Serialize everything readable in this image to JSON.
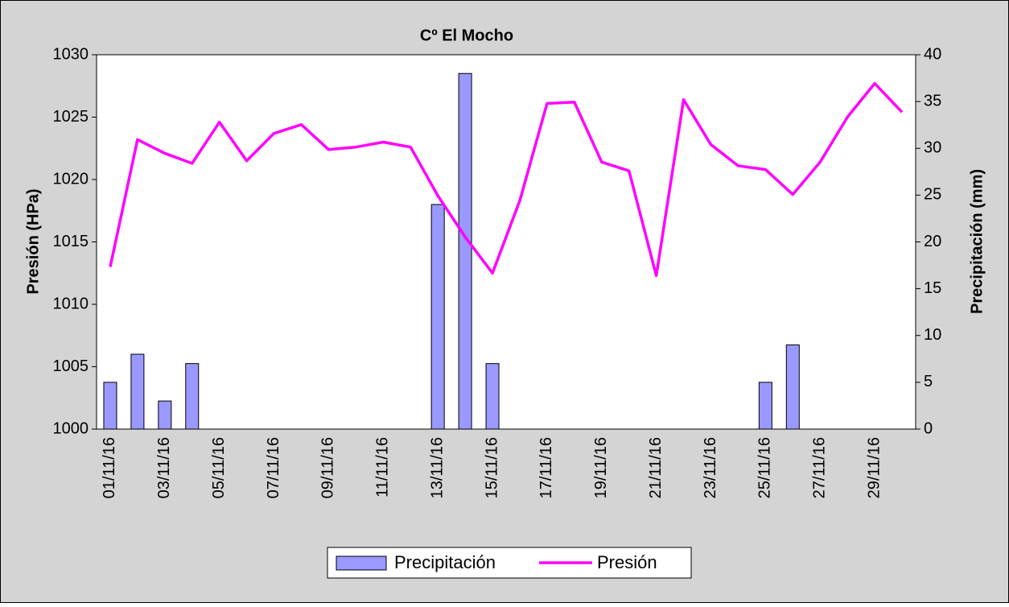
{
  "chart_data": {
    "type": "bar_line",
    "title": "Cº El Mocho",
    "y_label": "Presión (HPa)",
    "y2_label": "Precipitación (mm)",
    "categories": [
      "01/11/16",
      null,
      "03/11/16",
      null,
      "05/11/16",
      null,
      "07/11/16",
      null,
      "09/11/16",
      null,
      "11/11/16",
      null,
      "13/11/16",
      null,
      "15/11/16",
      null,
      "17/11/16",
      null,
      "19/11/16",
      null,
      "21/11/16",
      null,
      "23/11/16",
      null,
      "25/11/16",
      null,
      "27/11/16",
      null,
      "29/11/16",
      null
    ],
    "series": [
      {
        "name": "Precipitación",
        "type": "bar",
        "axis": "y2",
        "color": "#9999ff",
        "values": [
          5,
          8,
          3,
          7,
          0,
          0,
          0,
          0,
          0,
          0,
          0,
          0,
          24,
          38,
          7,
          0,
          0,
          0,
          0,
          0,
          0,
          0,
          0,
          0,
          5,
          9,
          0,
          0,
          0,
          0
        ]
      },
      {
        "name": "Presión",
        "type": "line",
        "axis": "y",
        "color": "#ff00ff",
        "values": [
          1013.0,
          1023.2,
          1022.1,
          1021.3,
          1024.6,
          1021.5,
          1023.7,
          1024.4,
          1022.4,
          1022.6,
          1023.0,
          1022.6,
          1018.7,
          1015.4,
          1012.5,
          1018.3,
          1026.1,
          1026.2,
          1021.4,
          1020.7,
          1012.3,
          1026.4,
          1022.8,
          1021.1,
          1020.8,
          1018.8,
          1021.4,
          1025.0,
          1027.7,
          1025.4
        ]
      }
    ],
    "ylim": [
      1000,
      1030
    ],
    "yticks": [
      1000,
      1005,
      1010,
      1015,
      1020,
      1025,
      1030
    ],
    "y2lim": [
      0,
      40
    ],
    "y2ticks": [
      0,
      5,
      10,
      15,
      20,
      25,
      30,
      35,
      40
    ],
    "legend": "bottom"
  }
}
